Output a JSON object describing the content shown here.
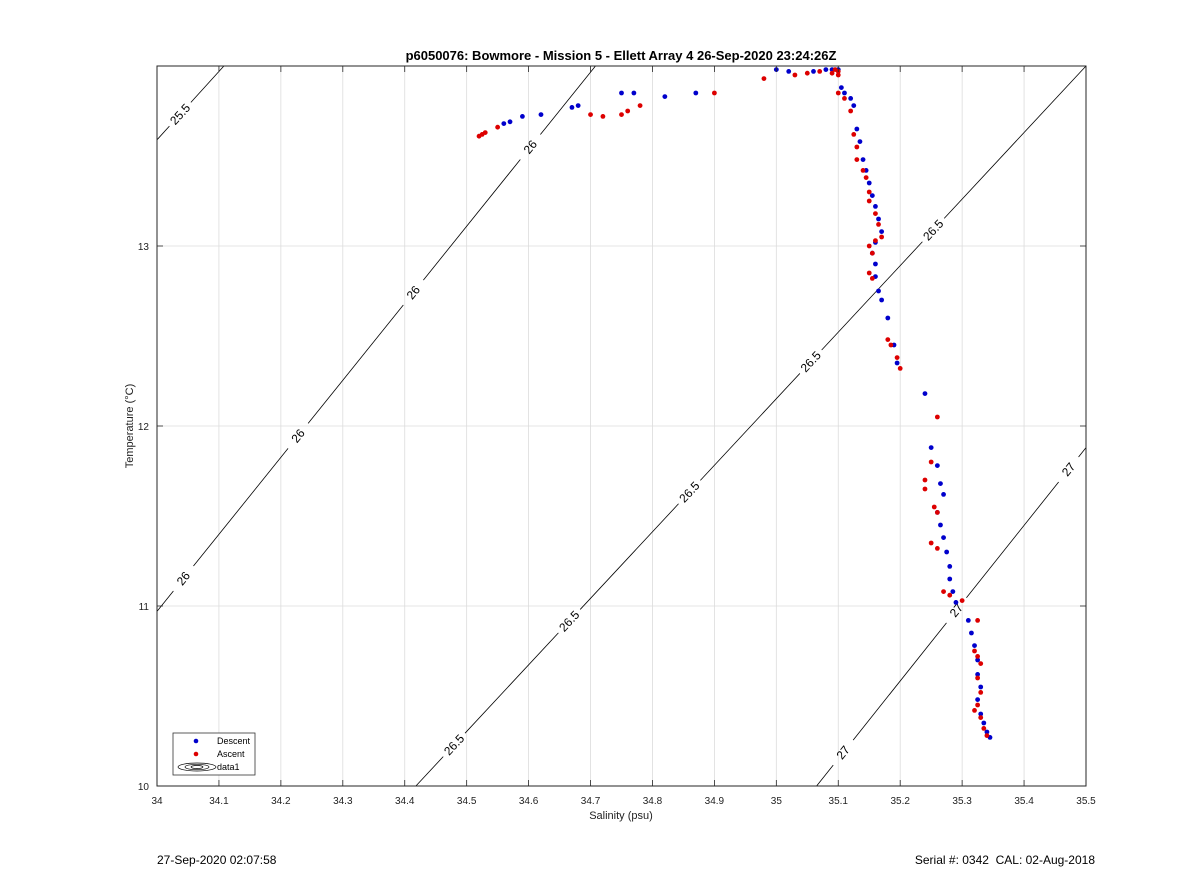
{
  "chart_data": {
    "type": "scatter",
    "title": "p6050076: Bowmore - Mission 5 - Ellett Array 4 26-Sep-2020 23:24:26Z",
    "xlabel": "Salinity (psu)",
    "ylabel": "Temperature (°C)",
    "xlim": [
      34,
      35.5
    ],
    "ylim": [
      10,
      14
    ],
    "x_ticks": [
      34,
      34.1,
      34.2,
      34.3,
      34.4,
      34.5,
      34.6,
      34.7,
      34.8,
      34.9,
      35,
      35.1,
      35.2,
      35.3,
      35.4,
      35.5
    ],
    "x_tick_labels": [
      "34",
      "34.1",
      "34.2",
      "34.3",
      "34.4",
      "34.5",
      "34.6",
      "34.7",
      "34.8",
      "34.9",
      "35",
      "35.1",
      "35.2",
      "35.3",
      "35.4",
      "35.5"
    ],
    "y_ticks": [
      10,
      11,
      12,
      13
    ],
    "y_tick_labels": [
      "10",
      "11",
      "12",
      "13"
    ],
    "grid": true,
    "legend_position": "bottom-left",
    "legend": [
      "Descent",
      "Ascent",
      "data1"
    ],
    "contours": [
      {
        "label": "25.5",
        "points": [
          [
            34,
            13.59
          ],
          [
            34.108,
            14
          ]
        ],
        "labels_at": [
          [
            34.038,
            13.73
          ]
        ]
      },
      {
        "label": "26",
        "points": [
          [
            34,
            10.97
          ],
          [
            34.708,
            14
          ]
        ],
        "labels_at": [
          [
            34.04,
            11.16
          ],
          [
            34.226,
            11.95
          ],
          [
            34.418,
            12.73
          ],
          [
            34.61,
            13.53
          ]
        ]
      },
      {
        "label": "26.5",
        "points": [
          [
            34.418,
            10
          ],
          [
            35.5,
            14
          ]
        ],
        "labels_at": [
          [
            34.473,
            10.25
          ],
          [
            34.655,
            10.95
          ],
          [
            34.845,
            11.68
          ],
          [
            35.036,
            12.42
          ],
          [
            35.228,
            13.17
          ]
        ]
      },
      {
        "label": "27",
        "points": [
          [
            35.065,
            10
          ],
          [
            35.5,
            11.88
          ]
        ],
        "labels_at": [
          [
            35.11,
            10.18
          ],
          [
            35.293,
            10.97
          ],
          [
            35.475,
            11.75
          ]
        ]
      }
    ],
    "series": [
      {
        "name": "Descent",
        "color": "#0000cc",
        "points": [
          [
            34.56,
            13.68
          ],
          [
            34.57,
            13.69
          ],
          [
            34.59,
            13.72
          ],
          [
            34.62,
            13.73
          ],
          [
            34.67,
            13.77
          ],
          [
            34.68,
            13.78
          ],
          [
            34.75,
            13.85
          ],
          [
            34.77,
            13.85
          ],
          [
            34.82,
            13.83
          ],
          [
            34.87,
            13.85
          ],
          [
            35.0,
            13.98
          ],
          [
            35.02,
            13.97
          ],
          [
            35.06,
            13.97
          ],
          [
            35.08,
            13.98
          ],
          [
            35.09,
            13.98
          ],
          [
            35.1,
            13.98
          ],
          [
            35.105,
            13.88
          ],
          [
            35.11,
            13.85
          ],
          [
            35.12,
            13.82
          ],
          [
            35.125,
            13.78
          ],
          [
            35.13,
            13.65
          ],
          [
            35.135,
            13.58
          ],
          [
            35.14,
            13.48
          ],
          [
            35.145,
            13.42
          ],
          [
            35.15,
            13.35
          ],
          [
            35.155,
            13.28
          ],
          [
            35.16,
            13.22
          ],
          [
            35.165,
            13.15
          ],
          [
            35.17,
            13.08
          ],
          [
            35.16,
            13.02
          ],
          [
            35.155,
            12.96
          ],
          [
            35.16,
            12.9
          ],
          [
            35.16,
            12.83
          ],
          [
            35.165,
            12.75
          ],
          [
            35.17,
            12.7
          ],
          [
            35.18,
            12.6
          ],
          [
            35.19,
            12.45
          ],
          [
            35.195,
            12.35
          ],
          [
            35.24,
            12.18
          ],
          [
            35.25,
            11.88
          ],
          [
            35.26,
            11.78
          ],
          [
            35.265,
            11.68
          ],
          [
            35.27,
            11.62
          ],
          [
            35.26,
            11.52
          ],
          [
            35.265,
            11.45
          ],
          [
            35.27,
            11.38
          ],
          [
            35.275,
            11.3
          ],
          [
            35.28,
            11.22
          ],
          [
            35.28,
            11.15
          ],
          [
            35.285,
            11.08
          ],
          [
            35.29,
            11.02
          ],
          [
            35.31,
            10.92
          ],
          [
            35.315,
            10.85
          ],
          [
            35.32,
            10.78
          ],
          [
            35.325,
            10.7
          ],
          [
            35.325,
            10.62
          ],
          [
            35.33,
            10.55
          ],
          [
            35.325,
            10.48
          ],
          [
            35.33,
            10.4
          ],
          [
            35.335,
            10.35
          ],
          [
            35.34,
            10.3
          ],
          [
            35.345,
            10.27
          ]
        ]
      },
      {
        "name": "Ascent",
        "color": "#dd0000",
        "points": [
          [
            34.52,
            13.61
          ],
          [
            34.525,
            13.62
          ],
          [
            34.53,
            13.63
          ],
          [
            34.55,
            13.66
          ],
          [
            34.7,
            13.73
          ],
          [
            34.72,
            13.72
          ],
          [
            34.75,
            13.73
          ],
          [
            34.76,
            13.75
          ],
          [
            34.78,
            13.78
          ],
          [
            34.9,
            13.85
          ],
          [
            34.98,
            13.93
          ],
          [
            35.03,
            13.95
          ],
          [
            35.05,
            13.96
          ],
          [
            35.07,
            13.97
          ],
          [
            35.09,
            13.96
          ],
          [
            35.095,
            13.98
          ],
          [
            35.1,
            13.97
          ],
          [
            35.1,
            13.95
          ],
          [
            35.1,
            13.85
          ],
          [
            35.11,
            13.82
          ],
          [
            35.12,
            13.75
          ],
          [
            35.125,
            13.62
          ],
          [
            35.13,
            13.55
          ],
          [
            35.13,
            13.48
          ],
          [
            35.14,
            13.42
          ],
          [
            35.145,
            13.38
          ],
          [
            35.15,
            13.3
          ],
          [
            35.15,
            13.25
          ],
          [
            35.16,
            13.18
          ],
          [
            35.165,
            13.12
          ],
          [
            35.17,
            13.05
          ],
          [
            35.16,
            13.03
          ],
          [
            35.15,
            13.0
          ],
          [
            35.155,
            12.96
          ],
          [
            35.15,
            12.85
          ],
          [
            35.155,
            12.82
          ],
          [
            35.18,
            12.48
          ],
          [
            35.185,
            12.45
          ],
          [
            35.195,
            12.38
          ],
          [
            35.2,
            12.32
          ],
          [
            35.26,
            12.05
          ],
          [
            35.25,
            11.8
          ],
          [
            35.24,
            11.7
          ],
          [
            35.24,
            11.65
          ],
          [
            35.255,
            11.55
          ],
          [
            35.26,
            11.52
          ],
          [
            35.25,
            11.35
          ],
          [
            35.26,
            11.32
          ],
          [
            35.27,
            11.08
          ],
          [
            35.28,
            11.06
          ],
          [
            35.3,
            11.03
          ],
          [
            35.325,
            10.92
          ],
          [
            35.32,
            10.75
          ],
          [
            35.325,
            10.72
          ],
          [
            35.33,
            10.68
          ],
          [
            35.325,
            10.6
          ],
          [
            35.33,
            10.52
          ],
          [
            35.325,
            10.45
          ],
          [
            35.32,
            10.42
          ],
          [
            35.33,
            10.38
          ],
          [
            35.335,
            10.32
          ],
          [
            35.34,
            10.28
          ]
        ]
      }
    ]
  },
  "footer": {
    "left": "27-Sep-2020 02:07:58",
    "right": "Serial #: 0342  CAL: 02-Aug-2018"
  }
}
